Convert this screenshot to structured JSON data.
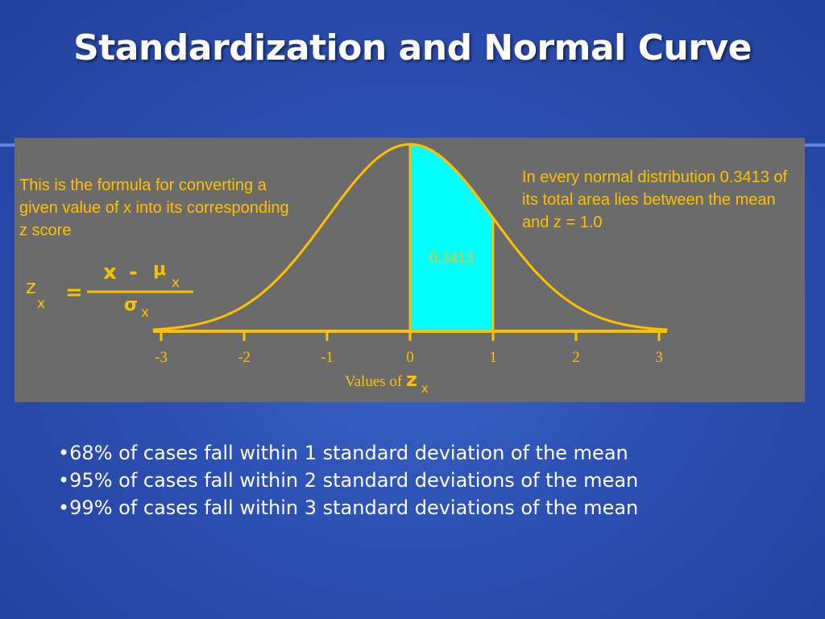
{
  "slide": {
    "title": "Standardization and Normal Curve",
    "bullets": [
      "68% of cases fall within 1 standard deviation of the mean",
      "95% of cases fall within 2 standard deviations of the mean",
      "99% of cases fall within 3 standard deviations of the mean"
    ]
  },
  "figure": {
    "left_note": "This is the formula for converting a given value of x into its corresponding z score",
    "right_note": "In every normal distribution 0.3413 of its total area lies between the mean and  z = 1.0",
    "formula": {
      "lhs": "z",
      "lhs_sub": "x",
      "equals": "=",
      "numerator_x": "x",
      "minus": "-",
      "mu": "μ",
      "mu_sub": "x",
      "sigma": "σ",
      "sigma_sub": "x"
    }
  },
  "chart_data": {
    "type": "area",
    "distribution": "standard normal",
    "x_ticks": [
      -3,
      -2,
      -1,
      0,
      1,
      2,
      3
    ],
    "x_tick_labels": [
      "-3",
      "-2",
      "-1",
      "0",
      "1",
      "2",
      "3"
    ],
    "xlim": [
      -3,
      3
    ],
    "shaded_region": {
      "from": 0,
      "to": 1,
      "label": "0.3413"
    },
    "xlabel": "Values of",
    "xlabel_symbol": "z",
    "xlabel_sub": "x",
    "colors": {
      "background": "#6b6b6b",
      "curve": "#ffc000",
      "shade": "#00ffff",
      "label": "#ffc000"
    }
  }
}
